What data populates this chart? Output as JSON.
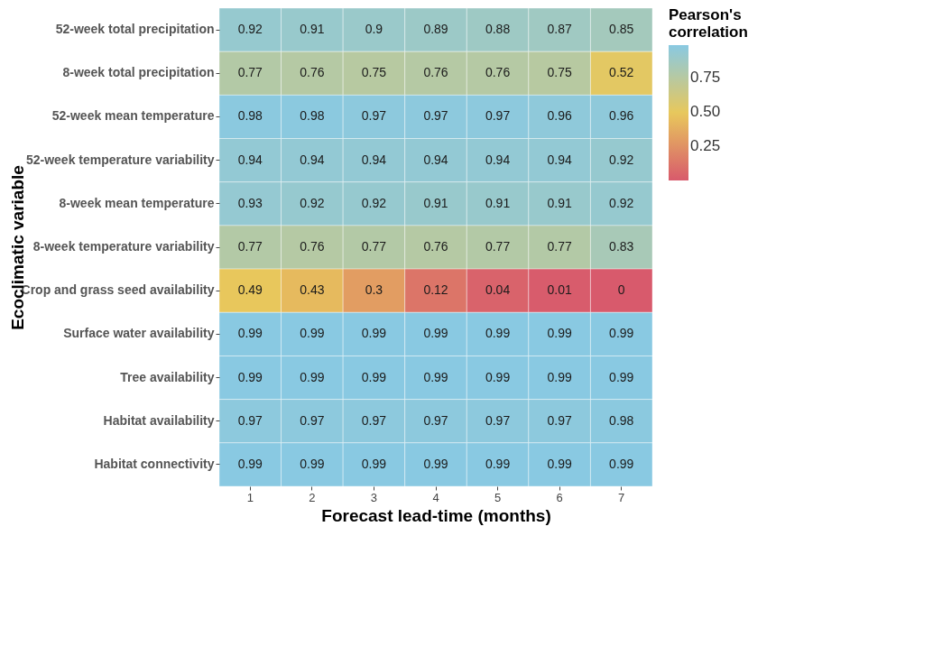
{
  "chart_data": {
    "type": "heatmap",
    "xlabel": "Forecast lead-time (months)",
    "ylabel": "Ecoclimatic variable",
    "legend_title": "Pearson's correlation",
    "categories": [
      "1",
      "2",
      "3",
      "4",
      "5",
      "6",
      "7"
    ],
    "y_categories": [
      "52-week total precipitation",
      "8-week total precipitation",
      "52-week mean temperature",
      "52-week temperature variability",
      "8-week mean temperature",
      "8-week temperature variability",
      "Crop and grass seed availability",
      "Surface water availability",
      "Tree availability",
      "Habitat availability",
      "Habitat connectivity"
    ],
    "cells": [
      [
        0.92,
        0.91,
        0.9,
        0.89,
        0.88,
        0.87,
        0.85
      ],
      [
        0.77,
        0.76,
        0.75,
        0.76,
        0.76,
        0.75,
        0.52
      ],
      [
        0.98,
        0.98,
        0.97,
        0.97,
        0.97,
        0.96,
        0.96
      ],
      [
        0.94,
        0.94,
        0.94,
        0.94,
        0.94,
        0.94,
        0.92
      ],
      [
        0.93,
        0.92,
        0.92,
        0.91,
        0.91,
        0.91,
        0.92
      ],
      [
        0.77,
        0.76,
        0.77,
        0.76,
        0.77,
        0.77,
        0.83
      ],
      [
        0.49,
        0.43,
        0.3,
        0.12,
        0.04,
        0.01,
        0
      ],
      [
        0.99,
        0.99,
        0.99,
        0.99,
        0.99,
        0.99,
        0.99
      ],
      [
        0.99,
        0.99,
        0.99,
        0.99,
        0.99,
        0.99,
        0.99
      ],
      [
        0.97,
        0.97,
        0.97,
        0.97,
        0.97,
        0.97,
        0.98
      ],
      [
        0.99,
        0.99,
        0.99,
        0.99,
        0.99,
        0.99,
        0.99
      ]
    ],
    "clim": [
      0,
      0.99
    ],
    "cticks": [
      {
        "value": 0.25,
        "label": "0.25"
      },
      {
        "value": 0.5,
        "label": "0.50"
      },
      {
        "value": 0.75,
        "label": "0.75"
      }
    ],
    "colors": [
      "#d85a6c",
      "#e8c85c",
      "#89c9e2"
    ],
    "data_labels": true
  }
}
